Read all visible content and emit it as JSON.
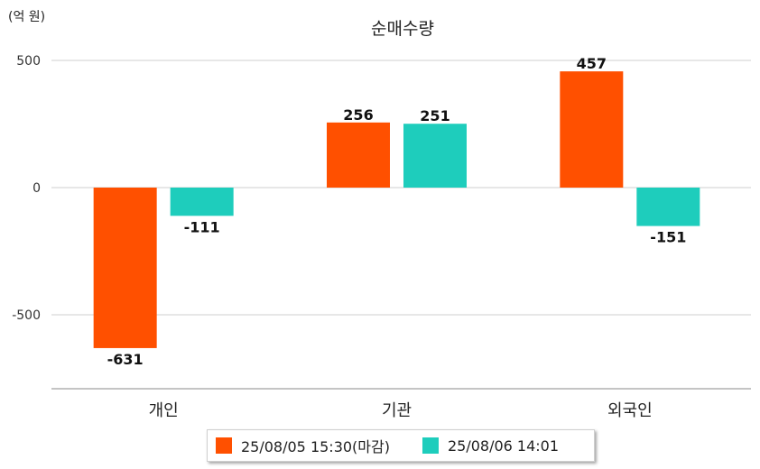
{
  "unit_label": "(억 원)",
  "chart_data": {
    "type": "bar",
    "title": "순매수량",
    "categories": [
      "개인",
      "기관",
      "외국인"
    ],
    "series": [
      {
        "name": "25/08/05 15:30(마감)",
        "color": "#ff5000",
        "values": [
          -631,
          256,
          457
        ]
      },
      {
        "name": "25/08/06 14:01",
        "color": "#1ecdbc",
        "values": [
          -111,
          251,
          -151
        ]
      }
    ],
    "yticks": [
      500,
      0,
      -500
    ],
    "ylim": [
      -780,
      500
    ],
    "grid": true,
    "legend_position": "bottom"
  }
}
